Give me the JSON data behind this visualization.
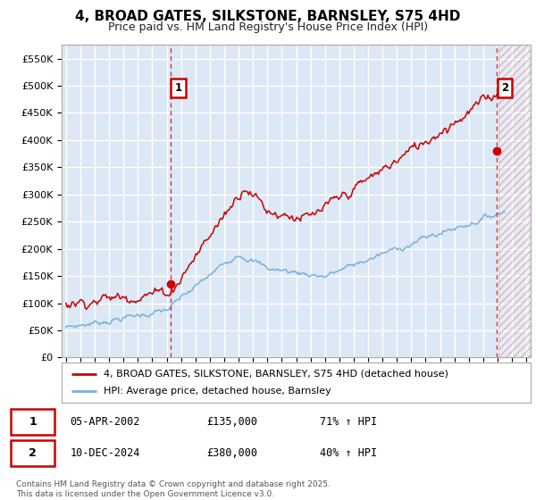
{
  "title": "4, BROAD GATES, SILKSTONE, BARNSLEY, S75 4HD",
  "subtitle": "Price paid vs. HM Land Registry's House Price Index (HPI)",
  "ylim": [
    0,
    575000
  ],
  "yticks": [
    0,
    50000,
    100000,
    150000,
    200000,
    250000,
    300000,
    350000,
    400000,
    450000,
    500000,
    550000
  ],
  "xlim_start": 1994.7,
  "xlim_end": 2027.3,
  "bg_color": "#dce8f5",
  "grid_color": "#ffffff",
  "red_color": "#cc0000",
  "blue_color": "#7ab0d8",
  "sale1_x": 2002.26,
  "sale1_y": 135000,
  "sale2_x": 2024.94,
  "sale2_y": 380000,
  "legend_label1": "4, BROAD GATES, SILKSTONE, BARNSLEY, S75 4HD (detached house)",
  "legend_label2": "HPI: Average price, detached house, Barnsley",
  "table_row1": [
    "1",
    "05-APR-2002",
    "£135,000",
    "71% ↑ HPI"
  ],
  "table_row2": [
    "2",
    "10-DEC-2024",
    "£380,000",
    "40% ↑ HPI"
  ],
  "footer": "Contains HM Land Registry data © Crown copyright and database right 2025.\nThis data is licensed under the Open Government Licence v3.0.",
  "hatch_start": 2025.08
}
